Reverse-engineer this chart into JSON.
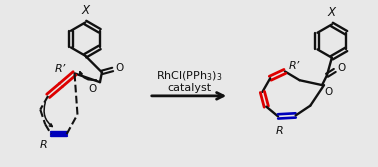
{
  "bg_color": "#e8e8e8",
  "red_color": "#dd0000",
  "blue_color": "#0000bb",
  "black_color": "#111111",
  "catalyst_line1": "RhCl(PPh$_3$)$_3$",
  "catalyst_line2": "catalyst",
  "label_X": "X",
  "label_R": "R",
  "label_Rprime": "R’",
  "label_O": "O",
  "figsize": [
    3.78,
    1.67
  ],
  "dpi": 100
}
